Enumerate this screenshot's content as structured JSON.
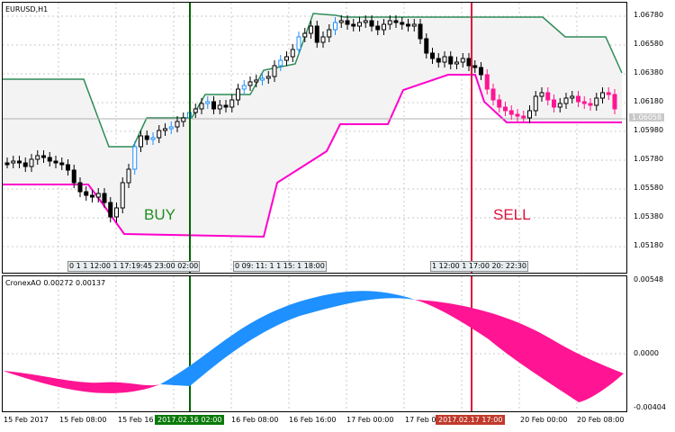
{
  "main_title": "EURUSD,H1",
  "indicator_title": "CronexAO 0.00272 0.00137",
  "price_scale": [
    "1.06780",
    "1.06580",
    "1.06380",
    "1.06180",
    "1.05980",
    "1.05780",
    "1.05580",
    "1.05380",
    "1.05180"
  ],
  "current_price": "1.06058",
  "indicator_scale": [
    "0.00548",
    "0.0000",
    "-0.00404"
  ],
  "time_labels": [
    "15 Feb 2017",
    "15 Feb 08:00",
    "15 Feb 16",
    "16 Feb 08:00",
    "16 Feb 16:00",
    "17 Feb 00:00",
    "17 Feb 08:00",
    "20 Feb 00:00",
    "20 Feb 08:00"
  ],
  "buy_time": "2017.02.16 02:00",
  "sell_time": "2017.02.17 17:00",
  "buy_label": "BUY",
  "sell_label": "SELL",
  "session_groups": [
    "0 1 1 12:00 1 17:19:45 23:00 02:00",
    "0 09: 11: 1 1 15: 1 18:00",
    "1 12:00 1 17:00 20: 22:30"
  ],
  "colors": {
    "up_candle": "#1e90ff",
    "down_candle": "#ff1493",
    "channel_upper": "#2e8b57",
    "channel_lower": "#ff00cc",
    "buy_line": "#006400",
    "sell_line": "#dc143c",
    "ao_positive": "#1e90ff",
    "ao_negative": "#ff1493"
  }
}
